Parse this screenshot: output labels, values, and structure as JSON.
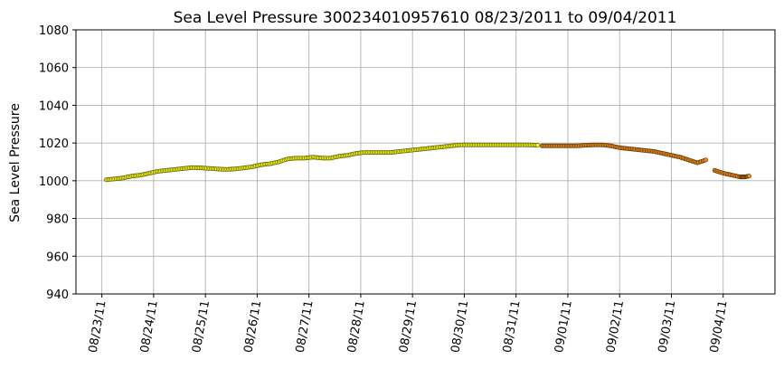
{
  "chart_data": {
    "type": "scatter",
    "title": "Sea Level Pressure 300234010957610  08/23/2011 to 09/04/2011",
    "xlabel": "",
    "ylabel": "Sea Level Pressure",
    "ylim": [
      940,
      1080
    ],
    "yticks": [
      940,
      960,
      980,
      1000,
      1020,
      1040,
      1060,
      1080
    ],
    "xlim": [
      "08/22/11 12:00",
      "09/05/11 00:00"
    ],
    "xticks": [
      "08/23/11",
      "08/24/11",
      "08/25/11",
      "08/26/11",
      "08/27/11",
      "08/28/11",
      "08/29/11",
      "08/30/11",
      "08/31/11",
      "09/01/11",
      "09/02/11",
      "09/03/11",
      "09/04/11"
    ],
    "grid": true,
    "legend": "none",
    "series": [
      {
        "color": "#ffff22",
        "edge": "#555500",
        "points": [
          [
            "08/23/11 02:00",
            1000.5
          ],
          [
            "08/23/11 06:00",
            1001.0
          ],
          [
            "08/23/11 10:00",
            1001.5
          ],
          [
            "08/23/11 14:00",
            1002.5
          ],
          [
            "08/23/11 18:00",
            1003.0
          ],
          [
            "08/23/11 22:00",
            1004.0
          ],
          [
            "08/24/11 02:00",
            1005.0
          ],
          [
            "08/24/11 06:00",
            1005.5
          ],
          [
            "08/24/11 10:00",
            1006.0
          ],
          [
            "08/24/11 14:00",
            1006.5
          ],
          [
            "08/24/11 18:00",
            1007.0
          ],
          [
            "08/24/11 22:00",
            1006.8
          ],
          [
            "08/25/11 02:00",
            1006.5
          ],
          [
            "08/25/11 06:00",
            1006.2
          ],
          [
            "08/25/11 10:00",
            1006.0
          ],
          [
            "08/25/11 14:00",
            1006.3
          ],
          [
            "08/25/11 18:00",
            1006.8
          ],
          [
            "08/25/11 22:00",
            1007.5
          ],
          [
            "08/26/11 02:00",
            1008.5
          ],
          [
            "08/26/11 06:00",
            1009.0
          ],
          [
            "08/26/11 10:00",
            1010.0
          ],
          [
            "08/26/11 14:00",
            1011.5
          ],
          [
            "08/26/11 18:00",
            1012.0
          ],
          [
            "08/26/11 22:00",
            1012.0
          ],
          [
            "08/27/11 02:00",
            1012.5
          ],
          [
            "08/27/11 06:00",
            1012.0
          ],
          [
            "08/27/11 10:00",
            1012.0
          ],
          [
            "08/27/11 14:00",
            1013.0
          ],
          [
            "08/27/11 18:00",
            1013.5
          ],
          [
            "08/27/11 22:00",
            1014.5
          ],
          [
            "08/28/11 02:00",
            1015.0
          ],
          [
            "08/28/11 06:00",
            1015.0
          ],
          [
            "08/28/11 10:00",
            1015.0
          ],
          [
            "08/28/11 14:00",
            1015.0
          ],
          [
            "08/28/11 18:00",
            1015.5
          ],
          [
            "08/28/11 22:00",
            1016.0
          ],
          [
            "08/29/11 02:00",
            1016.5
          ],
          [
            "08/29/11 06:00",
            1017.0
          ],
          [
            "08/29/11 10:00",
            1017.5
          ],
          [
            "08/29/11 14:00",
            1018.0
          ],
          [
            "08/29/11 18:00",
            1018.5
          ],
          [
            "08/29/11 22:00",
            1019.0
          ],
          [
            "08/30/11 02:00",
            1019.0
          ],
          [
            "08/30/11 06:00",
            1019.0
          ],
          [
            "08/30/11 10:00",
            1019.0
          ],
          [
            "08/30/11 14:00",
            1019.0
          ],
          [
            "08/30/11 18:00",
            1019.0
          ],
          [
            "08/30/11 22:00",
            1019.0
          ],
          [
            "08/31/11 02:00",
            1019.0
          ],
          [
            "08/31/11 06:00",
            1019.0
          ],
          [
            "08/31/11 10:00",
            1018.8
          ]
        ]
      },
      {
        "color": "#f08a24",
        "edge": "#553300",
        "points": [
          [
            "08/31/11 12:00",
            1018.5
          ],
          [
            "08/31/11 16:00",
            1018.5
          ],
          [
            "08/31/11 20:00",
            1018.5
          ],
          [
            "09/01/11 00:00",
            1018.5
          ],
          [
            "09/01/11 04:00",
            1018.5
          ],
          [
            "09/01/11 08:00",
            1018.8
          ],
          [
            "09/01/11 12:00",
            1019.0
          ],
          [
            "09/01/11 16:00",
            1019.0
          ],
          [
            "09/01/11 20:00",
            1018.5
          ],
          [
            "09/02/11 00:00",
            1017.5
          ],
          [
            "09/02/11 04:00",
            1017.0
          ],
          [
            "09/02/11 08:00",
            1016.5
          ],
          [
            "09/02/11 12:00",
            1016.0
          ],
          [
            "09/02/11 16:00",
            1015.5
          ],
          [
            "09/02/11 20:00",
            1014.5
          ],
          [
            "09/03/11 00:00",
            1013.5
          ],
          [
            "09/03/11 04:00",
            1012.5
          ],
          [
            "09/03/11 08:00",
            1011.0
          ],
          [
            "09/03/11 12:00",
            1009.5
          ],
          [
            "09/03/11 16:00",
            1011.0
          ],
          [
            "09/03/11 20:00",
            1005.5
          ],
          [
            "09/04/11 00:00",
            1004.0
          ],
          [
            "09/04/11 04:00",
            1003.0
          ],
          [
            "09/04/11 08:00",
            1002.0
          ],
          [
            "09/04/11 10:00",
            1002.0
          ],
          [
            "09/04/11 12:00",
            1002.5
          ]
        ]
      }
    ]
  }
}
